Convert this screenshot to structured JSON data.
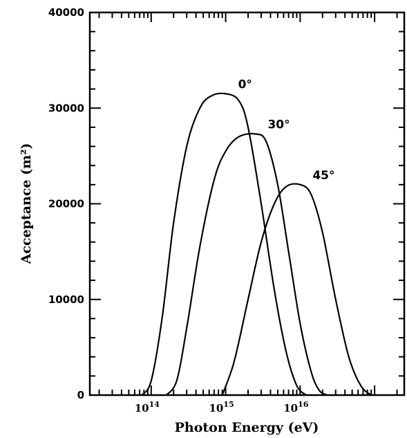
{
  "chart_data": {
    "type": "line",
    "xlabel": "Photon Energy (eV)",
    "ylabel": "Acceptance (m²)",
    "xscale": "log",
    "xlim": [
      15000000000000.0,
      2.5e+17
    ],
    "ylim": [
      0,
      40000
    ],
    "yticks": [
      {
        "value": 0,
        "label": "0"
      },
      {
        "value": 10000,
        "label": "10000"
      },
      {
        "value": 20000,
        "label": "20000"
      },
      {
        "value": 30000,
        "label": "30000"
      },
      {
        "value": 40000,
        "label": "40000"
      }
    ],
    "xticks": [
      {
        "value": 100000000000000.0,
        "base": "10",
        "exp": "14"
      },
      {
        "value": 1000000000000000.0,
        "base": "10",
        "exp": "15"
      },
      {
        "value": 1e+16,
        "base": "10",
        "exp": "16"
      }
    ],
    "grid": false,
    "legend": "none",
    "series": [
      {
        "name": "0°",
        "points": [
          [
            75000000000000.0,
            0
          ],
          [
            100000000000000.0,
            1500
          ],
          [
            140000000000000.0,
            8000
          ],
          [
            200000000000000.0,
            18000
          ],
          [
            300000000000000.0,
            26000
          ],
          [
            450000000000000.0,
            30000
          ],
          [
            650000000000000.0,
            31300
          ],
          [
            1000000000000000.0,
            31500
          ],
          [
            1500000000000000.0,
            30800
          ],
          [
            2000000000000000.0,
            28000
          ],
          [
            3000000000000000.0,
            20000
          ],
          [
            4500000000000000.0,
            11000
          ],
          [
            6500000000000000.0,
            4500
          ],
          [
            9000000000000000.0,
            1000
          ],
          [
            1.2e+16,
            0
          ]
        ]
      },
      {
        "name": "30°",
        "points": [
          [
            160000000000000.0,
            0
          ],
          [
            220000000000000.0,
            1500
          ],
          [
            300000000000000.0,
            7000
          ],
          [
            450000000000000.0,
            15500
          ],
          [
            700000000000000.0,
            22500
          ],
          [
            1000000000000000.0,
            25500
          ],
          [
            1500000000000000.0,
            27000
          ],
          [
            2500000000000000.0,
            27300
          ],
          [
            3500000000000000.0,
            26500
          ],
          [
            5000000000000000.0,
            22000
          ],
          [
            7000000000000000.0,
            15000
          ],
          [
            1e+16,
            7500
          ],
          [
            1.4e+16,
            2500
          ],
          [
            1.8e+16,
            500
          ],
          [
            2.3e+16,
            0
          ]
        ]
      },
      {
        "name": "45°",
        "points": [
          [
            900000000000000.0,
            0
          ],
          [
            1300000000000000.0,
            3500
          ],
          [
            2000000000000000.0,
            10000
          ],
          [
            3000000000000000.0,
            16000
          ],
          [
            4500000000000000.0,
            20000
          ],
          [
            6500000000000000.0,
            21800
          ],
          [
            1e+16,
            22000
          ],
          [
            1.4e+16,
            21000
          ],
          [
            2e+16,
            17000
          ],
          [
            3e+16,
            10000
          ],
          [
            4.5e+16,
            4000
          ],
          [
            6.5e+16,
            1000
          ],
          [
            9e+16,
            0
          ]
        ]
      }
    ]
  }
}
